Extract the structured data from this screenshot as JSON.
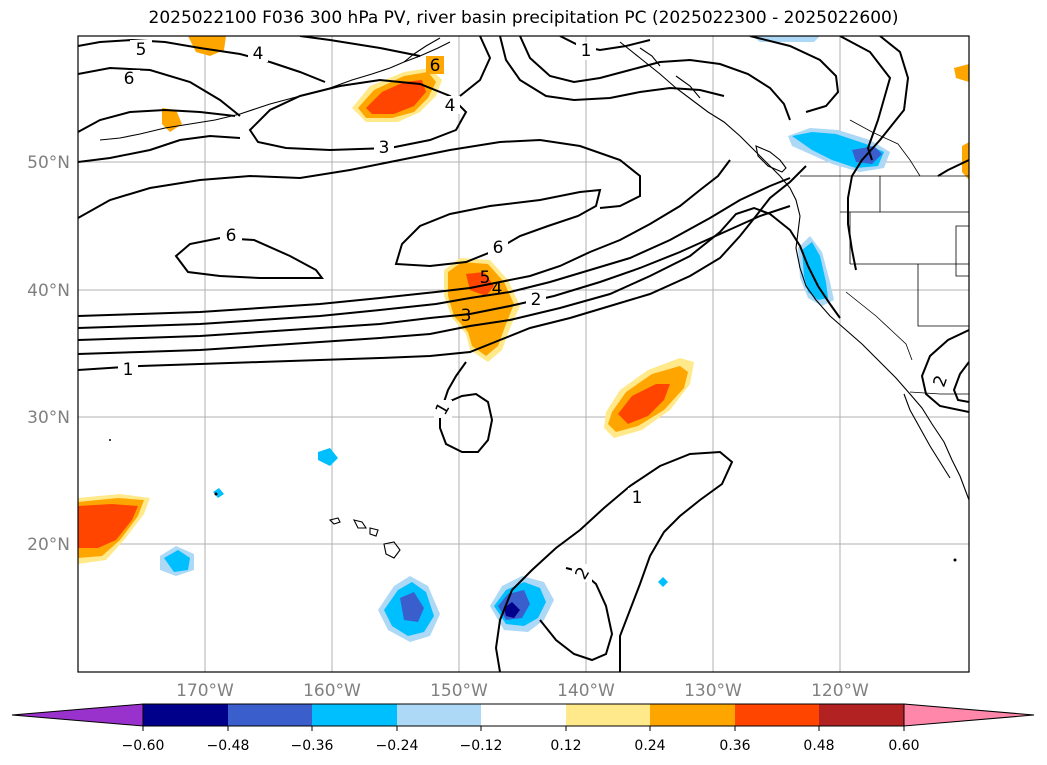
{
  "title": "2025022100 F036 300 hPa PV, river basin precipitation PC (2025022300 - 2025022600)",
  "lat_labels": [
    "20°N",
    "30°N",
    "40°N",
    "50°N"
  ],
  "lon_labels": [
    "170°W",
    "160°W",
    "150°W",
    "140°W",
    "130°W",
    "120°W"
  ],
  "contour_labels": [
    "5",
    "4",
    "6",
    "6",
    "4",
    "1",
    "3",
    "6",
    "6",
    "5",
    "4",
    "3",
    "2",
    "1",
    "1",
    "1",
    "2",
    "2"
  ],
  "colorbar": {
    "ticks": [
      "−0.60",
      "−0.48",
      "−0.36",
      "−0.24",
      "−0.12",
      "0.12",
      "0.24",
      "0.36",
      "0.48",
      "0.60"
    ],
    "colors": [
      "#9932cc",
      "#00008b",
      "#3a5fcd",
      "#00bfff",
      "#add8f6",
      "#ffffff",
      "#ffe98a",
      "#ffa500",
      "#ff4500",
      "#b22222",
      "#ff88aa"
    ]
  },
  "colors": {
    "neg_strong": "#00008b",
    "neg_mid": "#3a5fcd",
    "neg_weak": "#00bfff",
    "neg_faint": "#add8f6",
    "pos_faint": "#ffe98a",
    "pos_mid": "#ffa500",
    "pos_strong": "#ff4500"
  }
}
